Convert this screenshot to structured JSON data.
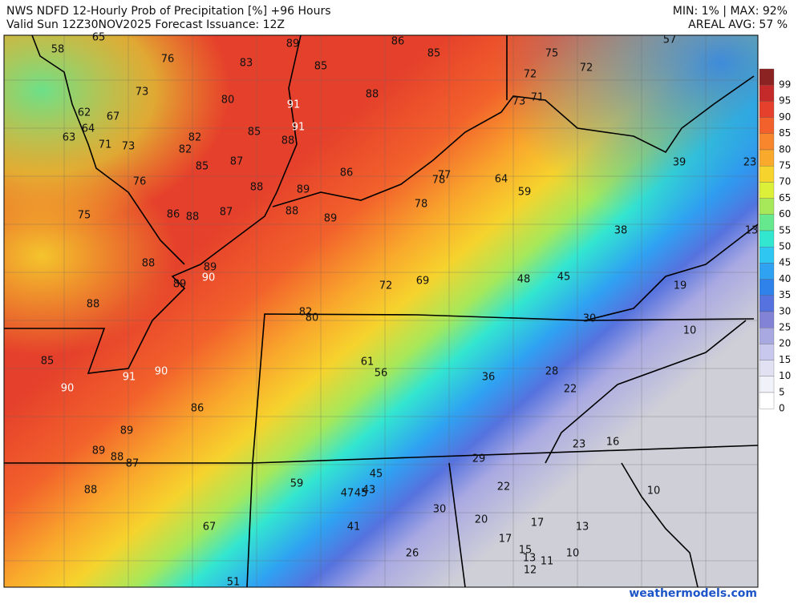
{
  "header": {
    "title": "NWS NDFD 12-Hourly Prob of Precipitation [%] +96 Hours",
    "subtitle": "Valid Sun 12Z30NOV2025   Forecast Issuance: 12Z",
    "stats": "MIN: 1% | MAX: 92%",
    "average": "AREAL AVG: 57 %"
  },
  "map": {
    "labels": [
      65,
      58,
      76,
      83,
      89,
      86,
      85,
      75,
      57,
      85,
      72,
      72,
      73,
      80,
      88,
      91,
      73,
      71,
      62,
      67,
      91,
      64,
      82,
      85,
      88,
      63,
      71,
      73,
      82,
      85,
      87,
      86,
      77,
      78,
      64,
      39,
      23,
      76,
      88,
      89,
      59,
      78,
      88,
      75,
      86,
      88,
      87,
      89,
      13,
      38,
      88,
      89,
      90,
      89,
      48,
      45,
      72,
      69,
      19,
      88,
      82,
      80,
      30,
      10,
      85,
      61,
      56,
      36,
      28,
      91,
      90,
      90,
      22,
      86,
      89,
      23,
      16,
      89,
      88,
      87,
      29,
      45,
      59,
      22,
      10,
      88,
      47,
      45,
      43,
      30,
      20,
      17,
      13,
      67,
      41,
      17,
      15,
      10,
      26,
      13,
      11,
      12,
      51
    ]
  },
  "colorbar": {
    "levels": [
      99,
      95,
      90,
      85,
      80,
      75,
      70,
      65,
      60,
      55,
      50,
      45,
      40,
      35,
      30,
      25,
      20,
      15,
      10,
      5,
      0
    ],
    "colors": [
      "#8c2323",
      "#c42a2a",
      "#e5402b",
      "#f2612b",
      "#f7862c",
      "#f9a92c",
      "#f6d32d",
      "#dcef39",
      "#a6e85a",
      "#66e88e",
      "#33e6d0",
      "#30c6f2",
      "#2fa2f2",
      "#2f82ea",
      "#5572de",
      "#8282d6",
      "#a9a9e2",
      "#c8c8ee",
      "#e1e1f3",
      "#f1f1f9",
      "#ffffff"
    ]
  },
  "footer": {
    "credit": "weathermodels.com"
  }
}
